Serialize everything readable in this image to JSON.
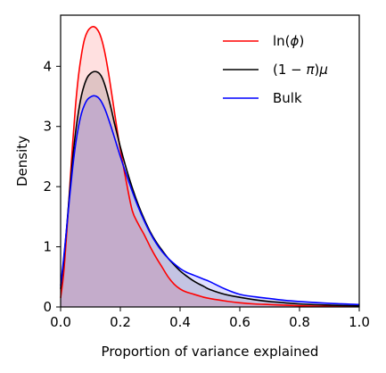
{
  "chart_data": {
    "type": "area",
    "title": "",
    "xlabel": "Proportion of variance explained",
    "ylabel": "Density",
    "xlim": [
      0,
      1
    ],
    "ylim": [
      0,
      4.85
    ],
    "xticks": [
      "0.0",
      "0.2",
      "0.4",
      "0.6",
      "0.8",
      "1.0"
    ],
    "xtick_values": [
      0,
      0.2,
      0.4,
      0.6,
      0.8,
      1.0
    ],
    "yticks": [
      "0",
      "1",
      "2",
      "3",
      "4"
    ],
    "ytick_values": [
      0,
      1,
      2,
      3,
      4
    ],
    "grid": false,
    "legend_position": "top-right",
    "series": [
      {
        "name": "ln(ϕ)",
        "legend_parts": [
          "ln(",
          "ϕ",
          ")"
        ],
        "color": "#ff0000",
        "x": [
          0,
          0.01,
          0.02,
          0.03,
          0.04,
          0.05,
          0.06,
          0.07,
          0.08,
          0.09,
          0.1,
          0.11,
          0.12,
          0.13,
          0.14,
          0.15,
          0.16,
          0.17,
          0.18,
          0.19,
          0.2,
          0.22,
          0.24,
          0.26,
          0.28,
          0.3,
          0.32,
          0.34,
          0.36,
          0.38,
          0.4,
          0.42,
          0.44,
          0.46,
          0.48,
          0.5,
          0.55,
          0.6,
          0.65,
          0.7,
          0.75,
          0.8,
          0.9,
          1.0
        ],
        "values": [
          0.15,
          0.55,
          1.2,
          1.95,
          2.7,
          3.35,
          3.85,
          4.2,
          4.45,
          4.58,
          4.64,
          4.66,
          4.63,
          4.55,
          4.4,
          4.18,
          3.9,
          3.58,
          3.25,
          2.92,
          2.62,
          2.08,
          1.6,
          1.38,
          1.2,
          1.0,
          0.82,
          0.66,
          0.5,
          0.38,
          0.3,
          0.25,
          0.22,
          0.19,
          0.16,
          0.14,
          0.1,
          0.07,
          0.05,
          0.04,
          0.03,
          0.02,
          0.01,
          0.01
        ]
      },
      {
        "name": "(1−π)μ",
        "legend_parts": [
          "(1 − ",
          "π",
          ")",
          "μ"
        ],
        "color": "#000000",
        "x": [
          0,
          0.01,
          0.02,
          0.03,
          0.04,
          0.05,
          0.06,
          0.07,
          0.08,
          0.09,
          0.1,
          0.11,
          0.12,
          0.13,
          0.14,
          0.15,
          0.16,
          0.17,
          0.18,
          0.19,
          0.2,
          0.22,
          0.24,
          0.26,
          0.28,
          0.3,
          0.32,
          0.34,
          0.36,
          0.38,
          0.4,
          0.42,
          0.44,
          0.46,
          0.48,
          0.5,
          0.55,
          0.6,
          0.65,
          0.7,
          0.75,
          0.8,
          0.9,
          1.0
        ],
        "values": [
          0.3,
          0.75,
          1.3,
          1.9,
          2.45,
          2.9,
          3.25,
          3.52,
          3.7,
          3.82,
          3.88,
          3.91,
          3.91,
          3.88,
          3.8,
          3.66,
          3.48,
          3.28,
          3.06,
          2.86,
          2.66,
          2.3,
          1.98,
          1.7,
          1.46,
          1.25,
          1.08,
          0.94,
          0.81,
          0.7,
          0.6,
          0.52,
          0.45,
          0.39,
          0.34,
          0.29,
          0.21,
          0.16,
          0.12,
          0.09,
          0.07,
          0.05,
          0.03,
          0.02
        ]
      },
      {
        "name": "Bulk",
        "legend_parts": [
          "Bulk"
        ],
        "color": "#0000ff",
        "x": [
          0,
          0.01,
          0.02,
          0.03,
          0.04,
          0.05,
          0.06,
          0.07,
          0.08,
          0.09,
          0.1,
          0.11,
          0.12,
          0.13,
          0.14,
          0.15,
          0.16,
          0.17,
          0.18,
          0.19,
          0.2,
          0.22,
          0.24,
          0.26,
          0.28,
          0.3,
          0.32,
          0.34,
          0.36,
          0.38,
          0.4,
          0.42,
          0.44,
          0.46,
          0.48,
          0.5,
          0.55,
          0.6,
          0.65,
          0.7,
          0.75,
          0.8,
          0.9,
          1.0
        ],
        "values": [
          0.35,
          0.8,
          1.3,
          1.82,
          2.3,
          2.7,
          3.0,
          3.22,
          3.36,
          3.45,
          3.49,
          3.51,
          3.5,
          3.46,
          3.38,
          3.27,
          3.13,
          2.98,
          2.82,
          2.66,
          2.5,
          2.2,
          1.92,
          1.66,
          1.43,
          1.23,
          1.06,
          0.92,
          0.81,
          0.72,
          0.64,
          0.58,
          0.54,
          0.5,
          0.46,
          0.42,
          0.3,
          0.21,
          0.17,
          0.14,
          0.11,
          0.09,
          0.06,
          0.04
        ]
      }
    ]
  }
}
